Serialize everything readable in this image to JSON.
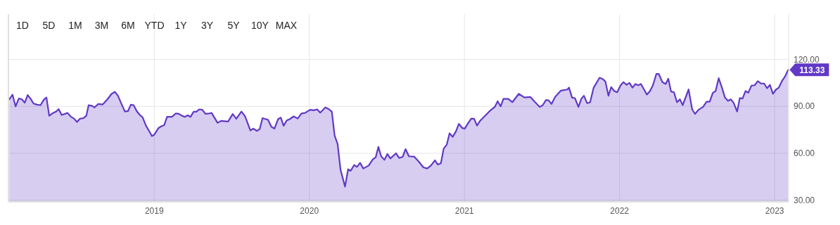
{
  "chart_data": {
    "type": "area",
    "annotations": [
      "1D",
      "5D",
      "1M",
      "3M",
      "6M",
      "YTD",
      "1Y",
      "3Y",
      "5Y",
      "10Y",
      "MAX",
      {
        "text": "113.33",
        "x": 2023.087,
        "y": 113.33
      }
    ],
    "xlim": [
      2018.06,
      2023.09
    ],
    "xticks": [
      2019,
      2020,
      2021,
      2022,
      2023
    ],
    "ylim": [
      29,
      149
    ],
    "yticks": [
      {
        "value": 30,
        "label": "30.00"
      },
      {
        "value": 60,
        "label": "60.00"
      },
      {
        "value": 90,
        "label": "90.00"
      },
      {
        "value": 120,
        "label": "120.00"
      }
    ],
    "grid": true,
    "series": [
      {
        "color": "#6039c6",
        "x": [
          2018.066,
          2018.086,
          2018.106,
          2018.127,
          2018.147,
          2018.165,
          2018.184,
          2018.202,
          2018.222,
          2018.245,
          2018.267,
          2018.287,
          2018.305,
          2018.323,
          2018.343,
          2018.366,
          2018.384,
          2018.403,
          2018.441,
          2018.464,
          2018.484,
          2018.502,
          2018.521,
          2018.544,
          2018.562,
          2018.577,
          2018.6,
          2018.615,
          2018.638,
          2018.668,
          2018.698,
          2018.725,
          2018.746,
          2018.766,
          2018.789,
          2018.811,
          2018.831,
          2018.849,
          2018.867,
          2018.887,
          2018.907,
          2018.925,
          2018.947,
          2018.967,
          2018.985,
          2019.0,
          2019.027,
          2019.046,
          2019.064,
          2019.083,
          2019.114,
          2019.139,
          2019.159,
          2019.179,
          2019.197,
          2019.216,
          2019.234,
          2019.254,
          2019.272,
          2019.29,
          2019.31,
          2019.33,
          2019.355,
          2019.37,
          2019.408,
          2019.431,
          2019.476,
          2019.506,
          2019.529,
          2019.562,
          2019.586,
          2019.62,
          2019.639,
          2019.662,
          2019.68,
          2019.698,
          2019.733,
          2019.755,
          2019.775,
          2019.798,
          2019.816,
          2019.834,
          2019.854,
          2019.873,
          2019.899,
          2019.925,
          2019.949,
          2019.972,
          2020.005,
          2020.028,
          2020.05,
          2020.07,
          2020.103,
          2020.126,
          2020.145,
          2020.163,
          2020.182,
          2020.201,
          2020.23,
          2020.25,
          2020.266,
          2020.289,
          2020.307,
          2020.327,
          2020.348,
          2020.383,
          2020.408,
          2020.428,
          2020.445,
          2020.463,
          2020.484,
          2020.503,
          2020.522,
          2020.559,
          2020.579,
          2020.602,
          2020.62,
          2020.642,
          2020.677,
          2020.707,
          2020.735,
          2020.76,
          2020.783,
          2020.81,
          2020.828,
          2020.848,
          2020.866,
          2020.886,
          2020.904,
          2020.924,
          2020.945,
          2020.964,
          2020.987,
          2021.002,
          2021.025,
          2021.044,
          2021.062,
          2021.081,
          2021.1,
          2021.138,
          2021.168,
          2021.196,
          2021.214,
          2021.233,
          2021.251,
          2021.282,
          2021.309,
          2021.35,
          2021.387,
          2021.425,
          2021.452,
          2021.486,
          2021.505,
          2021.526,
          2021.543,
          2021.561,
          2021.584,
          2021.622,
          2021.664,
          2021.674,
          2021.694,
          2021.712,
          2021.735,
          2021.753,
          2021.77,
          2021.791,
          2021.81,
          2021.833,
          2021.871,
          2021.894,
          2021.909,
          2021.928,
          2021.946,
          2021.966,
          2021.984,
          2022.007,
          2022.025,
          2022.045,
          2022.064,
          2022.083,
          2022.102,
          2022.12,
          2022.138,
          2022.176,
          2022.196,
          2022.215,
          2022.237,
          2022.253,
          2022.276,
          2022.297,
          2022.314,
          2022.332,
          2022.351,
          2022.37,
          2022.389,
          2022.407,
          2022.445,
          2022.468,
          2022.486,
          2022.509,
          2022.539,
          2022.561,
          2022.581,
          2022.601,
          2022.619,
          2022.639,
          2022.66,
          2022.679,
          2022.699,
          2022.717,
          2022.735,
          2022.758,
          2022.775,
          2022.793,
          2022.812,
          2022.83,
          2022.85,
          2022.871,
          2022.891,
          2022.911,
          2022.932,
          2022.951,
          2022.969,
          2022.989,
          2023.009,
          2023.027,
          2023.047,
          2023.065,
          2023.087
        ],
        "values": [
          94.5,
          97.5,
          90.0,
          95.0,
          94.5,
          92.3,
          97.2,
          95.0,
          91.8,
          91.1,
          90.8,
          94.1,
          95.7,
          84.0,
          85.5,
          86.6,
          88.2,
          84.5,
          85.8,
          83.3,
          82.1,
          80.0,
          82.1,
          82.5,
          84.0,
          90.8,
          90.3,
          89.3,
          91.5,
          91.2,
          94.5,
          98.0,
          99.3,
          96.8,
          91.5,
          86.7,
          87.0,
          91.1,
          90.8,
          87.0,
          84.5,
          83.0,
          77.6,
          74.3,
          71.0,
          71.9,
          76.1,
          77.3,
          78.0,
          83.3,
          83.3,
          85.5,
          85.2,
          84.0,
          83.3,
          84.3,
          83.3,
          86.6,
          86.6,
          88.1,
          87.8,
          85.2,
          85.5,
          85.8,
          79.5,
          80.7,
          80.3,
          85.1,
          82.1,
          86.7,
          83.6,
          74.6,
          75.8,
          74.3,
          75.5,
          82.5,
          81.5,
          77.0,
          75.8,
          81.8,
          82.8,
          77.6,
          81.0,
          81.8,
          83.6,
          82.2,
          85.5,
          85.8,
          87.8,
          87.5,
          88.1,
          86.0,
          89.3,
          88.2,
          86.6,
          71.3,
          66.0,
          49.5,
          38.7,
          49.8,
          48.8,
          52.5,
          51.3,
          53.9,
          50.3,
          52.2,
          56.0,
          57.5,
          64.1,
          58.1,
          55.8,
          59.6,
          56.7,
          60.0,
          57.0,
          57.8,
          62.7,
          58.1,
          57.8,
          54.5,
          51.0,
          50.3,
          52.1,
          55.5,
          52.8,
          53.6,
          63.0,
          65.6,
          72.8,
          70.5,
          74.0,
          78.8,
          76.1,
          75.8,
          79.5,
          82.2,
          82.1,
          77.7,
          80.7,
          84.5,
          87.5,
          89.7,
          93.3,
          90.0,
          94.8,
          94.8,
          92.7,
          98.0,
          95.7,
          96.0,
          93.0,
          89.6,
          90.8,
          94.1,
          93.8,
          91.5,
          96.0,
          100.1,
          100.8,
          102.0,
          95.6,
          95.3,
          89.6,
          94.8,
          96.8,
          92.0,
          92.6,
          102.0,
          108.3,
          107.3,
          105.8,
          96.8,
          102.3,
          99.8,
          99.0,
          103.5,
          105.5,
          103.8,
          105.0,
          102.0,
          104.3,
          103.5,
          104.3,
          97.5,
          99.8,
          103.5,
          110.7,
          110.7,
          105.5,
          104.3,
          107.7,
          99.5,
          99.0,
          92.6,
          94.5,
          90.8,
          100.8,
          88.1,
          85.2,
          87.8,
          89.7,
          93.0,
          93.0,
          98.6,
          99.8,
          108.0,
          102.0,
          95.7,
          93.5,
          94.5,
          92.3,
          86.7,
          95.3,
          95.0,
          99.8,
          98.7,
          103.2,
          103.5,
          106.1,
          104.7,
          104.6,
          101.6,
          103.8,
          98.0,
          100.8,
          102.0,
          106.2,
          108.8,
          113.33
        ]
      }
    ]
  }
}
